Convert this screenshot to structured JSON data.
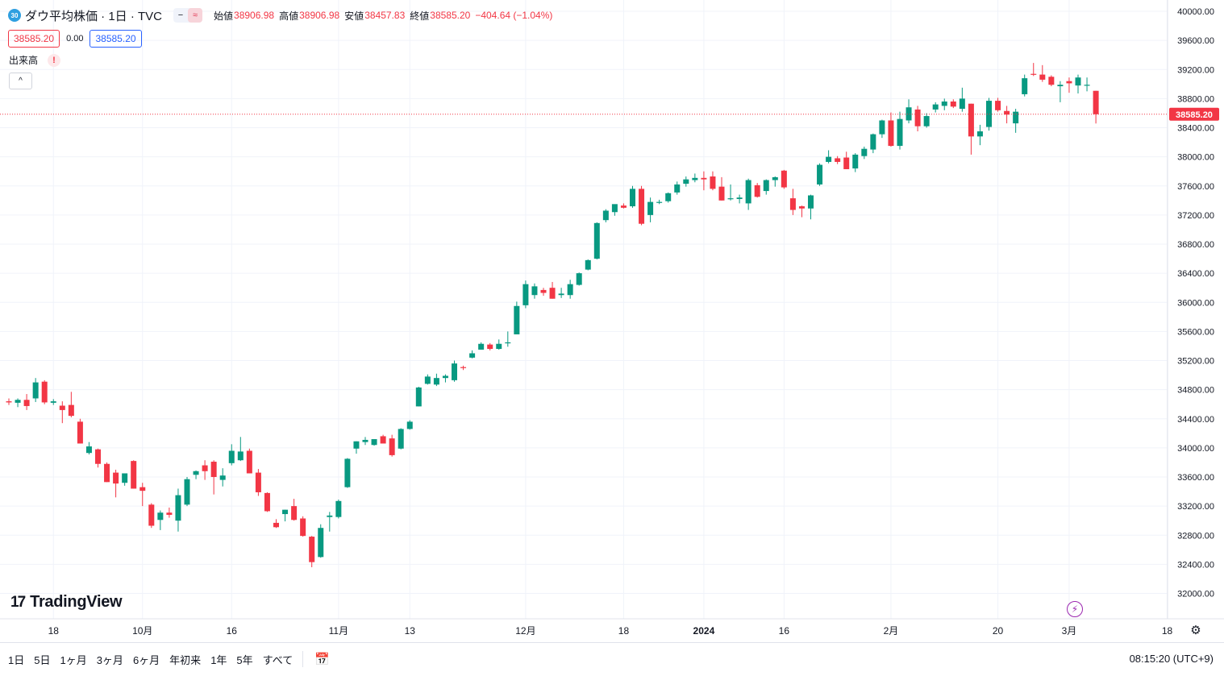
{
  "header": {
    "badge": "30",
    "title": "ダウ平均株価 · 1日 · TVC",
    "mode_icons": [
      "−",
      "≈"
    ],
    "ohlc": [
      {
        "label": "始値",
        "value": "38906.98"
      },
      {
        "label": "高値",
        "value": "38906.98"
      },
      {
        "label": "安値",
        "value": "38457.83"
      },
      {
        "label": "終値",
        "value": "38585.20"
      }
    ],
    "change": "−404.64 (−1.04%)",
    "sell_price": "38585.20",
    "spread": "0.00",
    "buy_price": "38585.20",
    "volume_label": "出来高",
    "warning": "!",
    "collapse": "^"
  },
  "logo": "TradingView",
  "logo_mark": "17",
  "flash_icon_glyph": "⚡",
  "settings_icon_glyph": "⚙",
  "bottom": {
    "ranges": [
      "1日",
      "5日",
      "1ヶ月",
      "3ヶ月",
      "6ヶ月",
      "年初来",
      "1年",
      "5年",
      "すべて"
    ],
    "time": "08:15:20 (UTC+9)"
  },
  "colors": {
    "up": "#089981",
    "down": "#f23645",
    "grid": "#f0f3fa",
    "last_price": "#f23645"
  },
  "chart_data": {
    "type": "candlestick",
    "instrument": "ダウ平均株価",
    "interval": "1日",
    "ylim": [
      31600,
      40200
    ],
    "y_ticks": [
      32000,
      32400,
      32800,
      33200,
      33600,
      34000,
      34400,
      34800,
      35200,
      35600,
      36000,
      36400,
      36800,
      37200,
      37600,
      38000,
      38400,
      38800,
      39200,
      39600,
      40000
    ],
    "y_tick_labels": [
      "32000.00",
      "32400.00",
      "32800.00",
      "33200.00",
      "33600.00",
      "34000.00",
      "34400.00",
      "34800.00",
      "35200.00",
      "35600.00",
      "36000.00",
      "36400.00",
      "36800.00",
      "37200.00",
      "37600.00",
      "38000.00",
      "38400.00",
      "38800.00",
      "39200.00",
      "39600.00",
      "40000.00"
    ],
    "x_ticks": [
      {
        "label": "18",
        "index": 5
      },
      {
        "label": "10月",
        "index": 15
      },
      {
        "label": "16",
        "index": 25
      },
      {
        "label": "11月",
        "index": 37
      },
      {
        "label": "13",
        "index": 45
      },
      {
        "label": "12月",
        "index": 58
      },
      {
        "label": "18",
        "index": 69
      },
      {
        "label": "2024",
        "index": 78,
        "bold": true
      },
      {
        "label": "16",
        "index": 87
      },
      {
        "label": "2月",
        "index": 99
      },
      {
        "label": "20",
        "index": 111
      },
      {
        "label": "3月",
        "index": 119
      },
      {
        "label": "18",
        "index": 130
      }
    ],
    "last_price": 38585.2,
    "last_price_label": "38585.20",
    "candles": [
      {
        "o": 34640,
        "h": 34680,
        "l": 34590,
        "c": 34625
      },
      {
        "o": 34620,
        "h": 34680,
        "l": 34560,
        "c": 34660
      },
      {
        "o": 34660,
        "h": 34740,
        "l": 34520,
        "c": 34575
      },
      {
        "o": 34680,
        "h": 34960,
        "l": 34630,
        "c": 34900
      },
      {
        "o": 34910,
        "h": 34930,
        "l": 34600,
        "c": 34625
      },
      {
        "o": 34620,
        "h": 34670,
        "l": 34590,
        "c": 34640
      },
      {
        "o": 34580,
        "h": 34640,
        "l": 34340,
        "c": 34520
      },
      {
        "o": 34590,
        "h": 34770,
        "l": 34420,
        "c": 34440
      },
      {
        "o": 34360,
        "h": 34400,
        "l": 34060,
        "c": 34060
      },
      {
        "o": 33930,
        "h": 34080,
        "l": 33910,
        "c": 34020
      },
      {
        "o": 33980,
        "h": 33990,
        "l": 33730,
        "c": 33780
      },
      {
        "o": 33780,
        "h": 33800,
        "l": 33530,
        "c": 33530
      },
      {
        "o": 33660,
        "h": 33700,
        "l": 33320,
        "c": 33510
      },
      {
        "o": 33520,
        "h": 33640,
        "l": 33480,
        "c": 33650
      },
      {
        "o": 33820,
        "h": 33830,
        "l": 33440,
        "c": 33440
      },
      {
        "o": 33460,
        "h": 33520,
        "l": 33200,
        "c": 33410
      },
      {
        "o": 33220,
        "h": 33240,
        "l": 32900,
        "c": 32930
      },
      {
        "o": 33010,
        "h": 33140,
        "l": 32870,
        "c": 33110
      },
      {
        "o": 33110,
        "h": 33180,
        "l": 33040,
        "c": 33080
      },
      {
        "o": 33000,
        "h": 33440,
        "l": 32850,
        "c": 33350
      },
      {
        "o": 33220,
        "h": 33600,
        "l": 33200,
        "c": 33570
      },
      {
        "o": 33630,
        "h": 33690,
        "l": 33570,
        "c": 33680
      },
      {
        "o": 33760,
        "h": 33830,
        "l": 33560,
        "c": 33680
      },
      {
        "o": 33810,
        "h": 33830,
        "l": 33360,
        "c": 33600
      },
      {
        "o": 33560,
        "h": 33720,
        "l": 33470,
        "c": 33620
      },
      {
        "o": 33790,
        "h": 34050,
        "l": 33760,
        "c": 33960
      },
      {
        "o": 33830,
        "h": 34150,
        "l": 33820,
        "c": 33950
      },
      {
        "o": 33960,
        "h": 33990,
        "l": 33650,
        "c": 33650
      },
      {
        "o": 33660,
        "h": 33710,
        "l": 33340,
        "c": 33390
      },
      {
        "o": 33380,
        "h": 33390,
        "l": 33120,
        "c": 33130
      },
      {
        "o": 32970,
        "h": 33020,
        "l": 32900,
        "c": 32910
      },
      {
        "o": 33090,
        "h": 33150,
        "l": 32990,
        "c": 33150
      },
      {
        "o": 33200,
        "h": 33300,
        "l": 33000,
        "c": 33010
      },
      {
        "o": 33030,
        "h": 33060,
        "l": 32780,
        "c": 32790
      },
      {
        "o": 32780,
        "h": 32790,
        "l": 32360,
        "c": 32430
      },
      {
        "o": 32500,
        "h": 32950,
        "l": 32490,
        "c": 32900
      },
      {
        "o": 33050,
        "h": 33120,
        "l": 32850,
        "c": 33070
      },
      {
        "o": 33050,
        "h": 33290,
        "l": 33030,
        "c": 33270
      },
      {
        "o": 33460,
        "h": 33860,
        "l": 33450,
        "c": 33850
      },
      {
        "o": 33990,
        "h": 34090,
        "l": 33920,
        "c": 34090
      },
      {
        "o": 34080,
        "h": 34150,
        "l": 34040,
        "c": 34110
      },
      {
        "o": 34040,
        "h": 34120,
        "l": 34030,
        "c": 34120
      },
      {
        "o": 34160,
        "h": 34180,
        "l": 34070,
        "c": 34060
      },
      {
        "o": 34130,
        "h": 34180,
        "l": 33880,
        "c": 33900
      },
      {
        "o": 33990,
        "h": 34270,
        "l": 33980,
        "c": 34260
      },
      {
        "o": 34260,
        "h": 34380,
        "l": 34250,
        "c": 34360
      },
      {
        "o": 34570,
        "h": 34840,
        "l": 34570,
        "c": 34830
      },
      {
        "o": 34880,
        "h": 35010,
        "l": 34870,
        "c": 34980
      },
      {
        "o": 34870,
        "h": 35020,
        "l": 34850,
        "c": 34960
      },
      {
        "o": 34960,
        "h": 35010,
        "l": 34900,
        "c": 34990
      },
      {
        "o": 34930,
        "h": 35200,
        "l": 34910,
        "c": 35160
      },
      {
        "o": 35110,
        "h": 35130,
        "l": 35070,
        "c": 35100
      },
      {
        "o": 35240,
        "h": 35340,
        "l": 35230,
        "c": 35300
      },
      {
        "o": 35350,
        "h": 35450,
        "l": 35350,
        "c": 35430
      },
      {
        "o": 35420,
        "h": 35440,
        "l": 35340,
        "c": 35360
      },
      {
        "o": 35360,
        "h": 35490,
        "l": 35350,
        "c": 35430
      },
      {
        "o": 35450,
        "h": 35600,
        "l": 35390,
        "c": 35450
      },
      {
        "o": 35560,
        "h": 36010,
        "l": 35560,
        "c": 35950
      },
      {
        "o": 35960,
        "h": 36300,
        "l": 35920,
        "c": 36250
      },
      {
        "o": 36100,
        "h": 36260,
        "l": 36050,
        "c": 36220
      },
      {
        "o": 36170,
        "h": 36200,
        "l": 36090,
        "c": 36130
      },
      {
        "o": 36200,
        "h": 36280,
        "l": 36050,
        "c": 36050
      },
      {
        "o": 36100,
        "h": 36200,
        "l": 36060,
        "c": 36120
      },
      {
        "o": 36100,
        "h": 36310,
        "l": 36050,
        "c": 36250
      },
      {
        "o": 36240,
        "h": 36410,
        "l": 36230,
        "c": 36400
      },
      {
        "o": 36450,
        "h": 36590,
        "l": 36440,
        "c": 36580
      },
      {
        "o": 36600,
        "h": 37100,
        "l": 36590,
        "c": 37090
      },
      {
        "o": 37130,
        "h": 37280,
        "l": 37100,
        "c": 37260
      },
      {
        "o": 37240,
        "h": 37330,
        "l": 37190,
        "c": 37350
      },
      {
        "o": 37330,
        "h": 37360,
        "l": 37290,
        "c": 37300
      },
      {
        "o": 37320,
        "h": 37600,
        "l": 37300,
        "c": 37560
      },
      {
        "o": 37560,
        "h": 37600,
        "l": 37060,
        "c": 37080
      },
      {
        "o": 37200,
        "h": 37440,
        "l": 37100,
        "c": 37380
      },
      {
        "o": 37380,
        "h": 37410,
        "l": 37350,
        "c": 37380
      },
      {
        "o": 37390,
        "h": 37510,
        "l": 37370,
        "c": 37500
      },
      {
        "o": 37510,
        "h": 37660,
        "l": 37480,
        "c": 37620
      },
      {
        "o": 37630,
        "h": 37730,
        "l": 37590,
        "c": 37690
      },
      {
        "o": 37680,
        "h": 37770,
        "l": 37650,
        "c": 37710
      },
      {
        "o": 37710,
        "h": 37800,
        "l": 37540,
        "c": 37690
      },
      {
        "o": 37730,
        "h": 37800,
        "l": 37540,
        "c": 37560
      },
      {
        "o": 37590,
        "h": 37720,
        "l": 37400,
        "c": 37400
      },
      {
        "o": 37420,
        "h": 37620,
        "l": 37400,
        "c": 37430
      },
      {
        "o": 37420,
        "h": 37480,
        "l": 37360,
        "c": 37440
      },
      {
        "o": 37360,
        "h": 37700,
        "l": 37270,
        "c": 37680
      },
      {
        "o": 37610,
        "h": 37640,
        "l": 37440,
        "c": 37450
      },
      {
        "o": 37530,
        "h": 37690,
        "l": 37480,
        "c": 37680
      },
      {
        "o": 37680,
        "h": 37730,
        "l": 37590,
        "c": 37720
      },
      {
        "o": 37810,
        "h": 37820,
        "l": 37560,
        "c": 37580
      },
      {
        "o": 37430,
        "h": 37560,
        "l": 37200,
        "c": 37270
      },
      {
        "o": 37320,
        "h": 37330,
        "l": 37170,
        "c": 37290
      },
      {
        "o": 37290,
        "h": 37480,
        "l": 37140,
        "c": 37470
      },
      {
        "o": 37620,
        "h": 37910,
        "l": 37600,
        "c": 37890
      },
      {
        "o": 37930,
        "h": 38090,
        "l": 37910,
        "c": 38000
      },
      {
        "o": 37980,
        "h": 38010,
        "l": 37900,
        "c": 37930
      },
      {
        "o": 37990,
        "h": 38070,
        "l": 37830,
        "c": 37830
      },
      {
        "o": 37840,
        "h": 38050,
        "l": 37790,
        "c": 38030
      },
      {
        "o": 38010,
        "h": 38140,
        "l": 37970,
        "c": 38110
      },
      {
        "o": 38100,
        "h": 38320,
        "l": 38050,
        "c": 38310
      },
      {
        "o": 38310,
        "h": 38510,
        "l": 38260,
        "c": 38500
      },
      {
        "o": 38500,
        "h": 38610,
        "l": 38140,
        "c": 38150
      },
      {
        "o": 38150,
        "h": 38620,
        "l": 38100,
        "c": 38520
      },
      {
        "o": 38500,
        "h": 38790,
        "l": 38460,
        "c": 38680
      },
      {
        "o": 38650,
        "h": 38700,
        "l": 38350,
        "c": 38420
      },
      {
        "o": 38420,
        "h": 38600,
        "l": 38400,
        "c": 38560
      },
      {
        "o": 38650,
        "h": 38750,
        "l": 38610,
        "c": 38720
      },
      {
        "o": 38700,
        "h": 38800,
        "l": 38640,
        "c": 38760
      },
      {
        "o": 38760,
        "h": 38790,
        "l": 38670,
        "c": 38690
      },
      {
        "o": 38660,
        "h": 38950,
        "l": 38620,
        "c": 38800
      },
      {
        "o": 38730,
        "h": 38730,
        "l": 38030,
        "c": 38280
      },
      {
        "o": 38280,
        "h": 38440,
        "l": 38160,
        "c": 38350
      },
      {
        "o": 38410,
        "h": 38810,
        "l": 38360,
        "c": 38770
      },
      {
        "o": 38770,
        "h": 38810,
        "l": 38620,
        "c": 38640
      },
      {
        "o": 38630,
        "h": 38700,
        "l": 38460,
        "c": 38580
      },
      {
        "o": 38460,
        "h": 38660,
        "l": 38330,
        "c": 38620
      },
      {
        "o": 38860,
        "h": 39130,
        "l": 38830,
        "c": 39080
      },
      {
        "o": 39140,
        "h": 39290,
        "l": 39110,
        "c": 39130
      },
      {
        "o": 39130,
        "h": 39260,
        "l": 39030,
        "c": 39060
      },
      {
        "o": 39100,
        "h": 39120,
        "l": 38970,
        "c": 38990
      },
      {
        "o": 38970,
        "h": 39040,
        "l": 38750,
        "c": 38990
      },
      {
        "o": 39040,
        "h": 39090,
        "l": 38880,
        "c": 39010
      },
      {
        "o": 38980,
        "h": 39130,
        "l": 38870,
        "c": 39090
      },
      {
        "o": 38990,
        "h": 39090,
        "l": 38900,
        "c": 38990
      },
      {
        "o": 38906.98,
        "h": 38906.98,
        "l": 38457.83,
        "c": 38585.2
      }
    ]
  }
}
